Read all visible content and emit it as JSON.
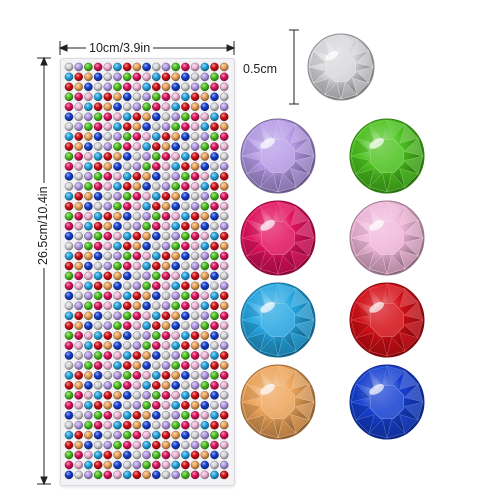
{
  "dimensions": {
    "width_label": "10cm/3.9in",
    "height_label": "26.5cm/10.4in",
    "gem_size_label": "0.5cm"
  },
  "gem_colors": [
    {
      "name": "clear",
      "hex": "#d8d8dc"
    },
    {
      "name": "lavender",
      "hex": "#b59be6"
    },
    {
      "name": "green",
      "hex": "#4cc21f"
    },
    {
      "name": "rose",
      "hex": "#e2125f"
    },
    {
      "name": "pink",
      "hex": "#f0b7d9"
    },
    {
      "name": "sky-blue",
      "hex": "#25a6e2"
    },
    {
      "name": "red",
      "hex": "#d40f16"
    },
    {
      "name": "amber",
      "hex": "#eda45a"
    },
    {
      "name": "royal-blue",
      "hex": "#1640d2"
    }
  ]
}
